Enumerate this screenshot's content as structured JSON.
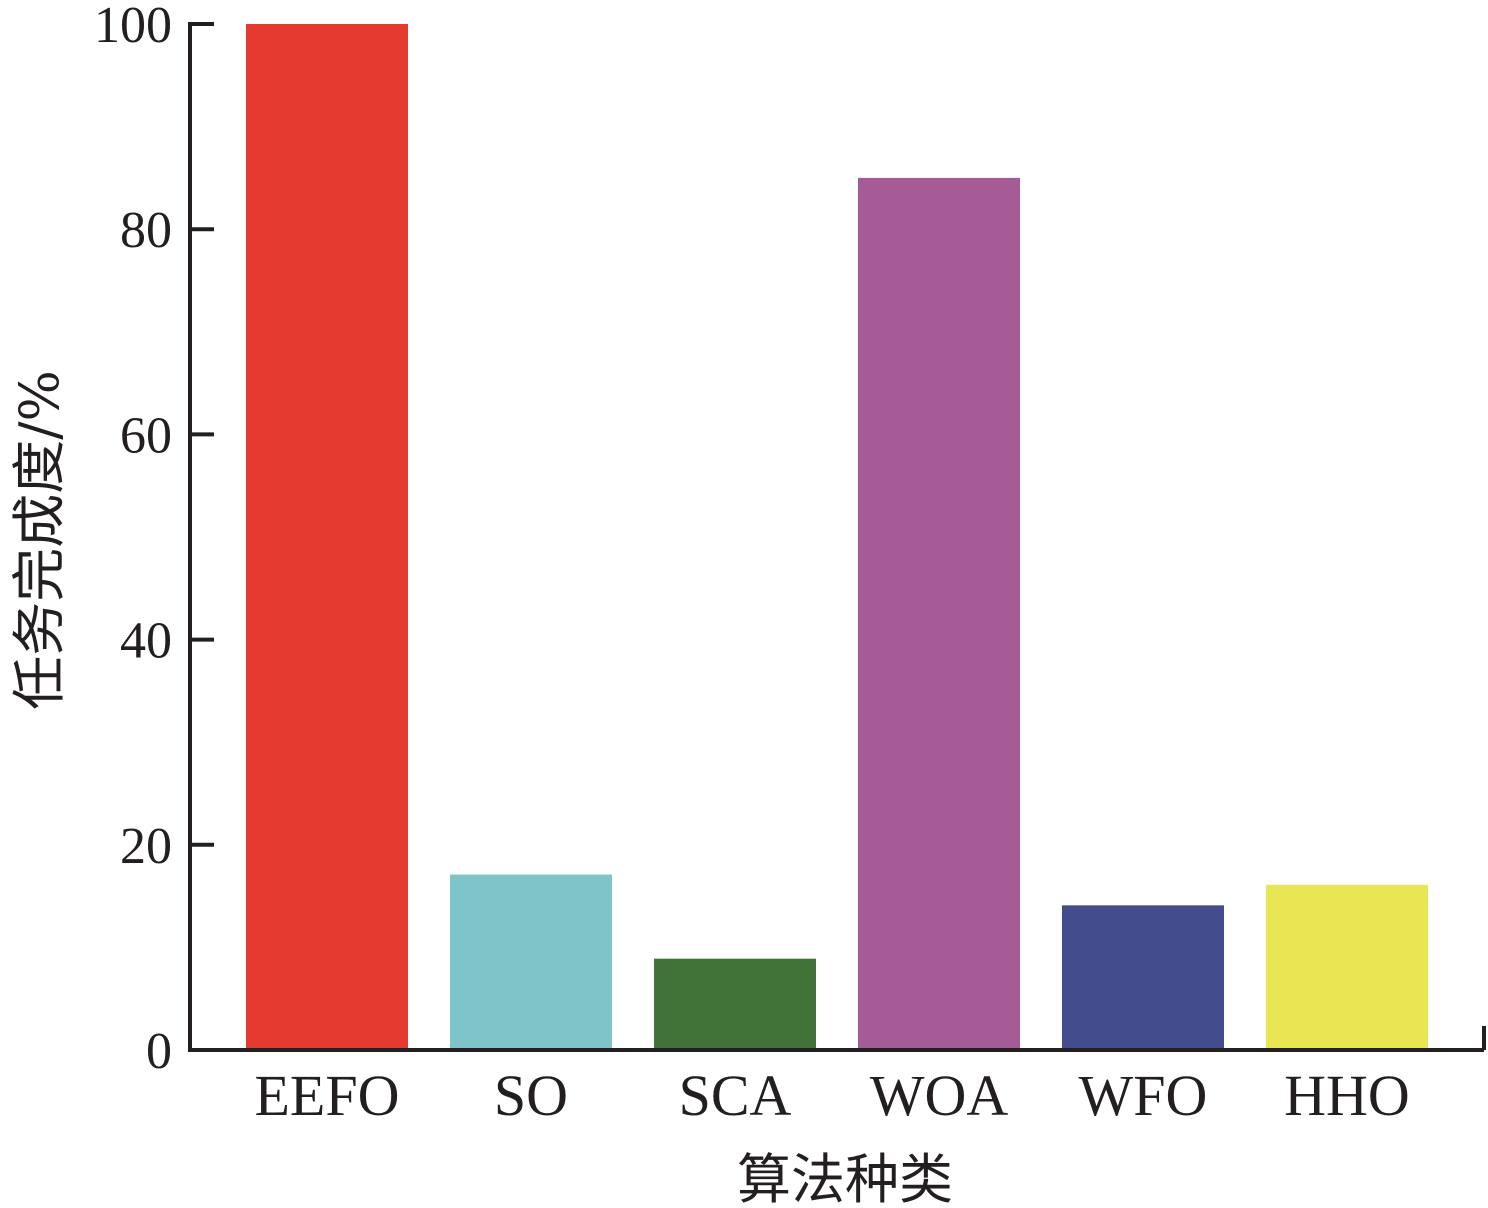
{
  "chart_data": {
    "type": "bar",
    "categories": [
      "EEFO",
      "SO",
      "SCA",
      "WOA",
      "WFO",
      "HHO"
    ],
    "values": [
      100,
      17.1,
      8.9,
      85,
      14.1,
      16.1
    ],
    "colors": [
      "#e43a30",
      "#7fc4c8",
      "#417238",
      "#a55b95",
      "#434c8c",
      "#e9e653"
    ],
    "xlabel": "算法种类",
    "ylabel": "任务完成度/%",
    "ylim": [
      0,
      100
    ],
    "yticks": [
      0,
      20,
      40,
      60,
      80,
      100
    ],
    "ytick_labels": [
      "0",
      "20",
      "40",
      "60",
      "80",
      "100"
    ],
    "grid": false
  }
}
